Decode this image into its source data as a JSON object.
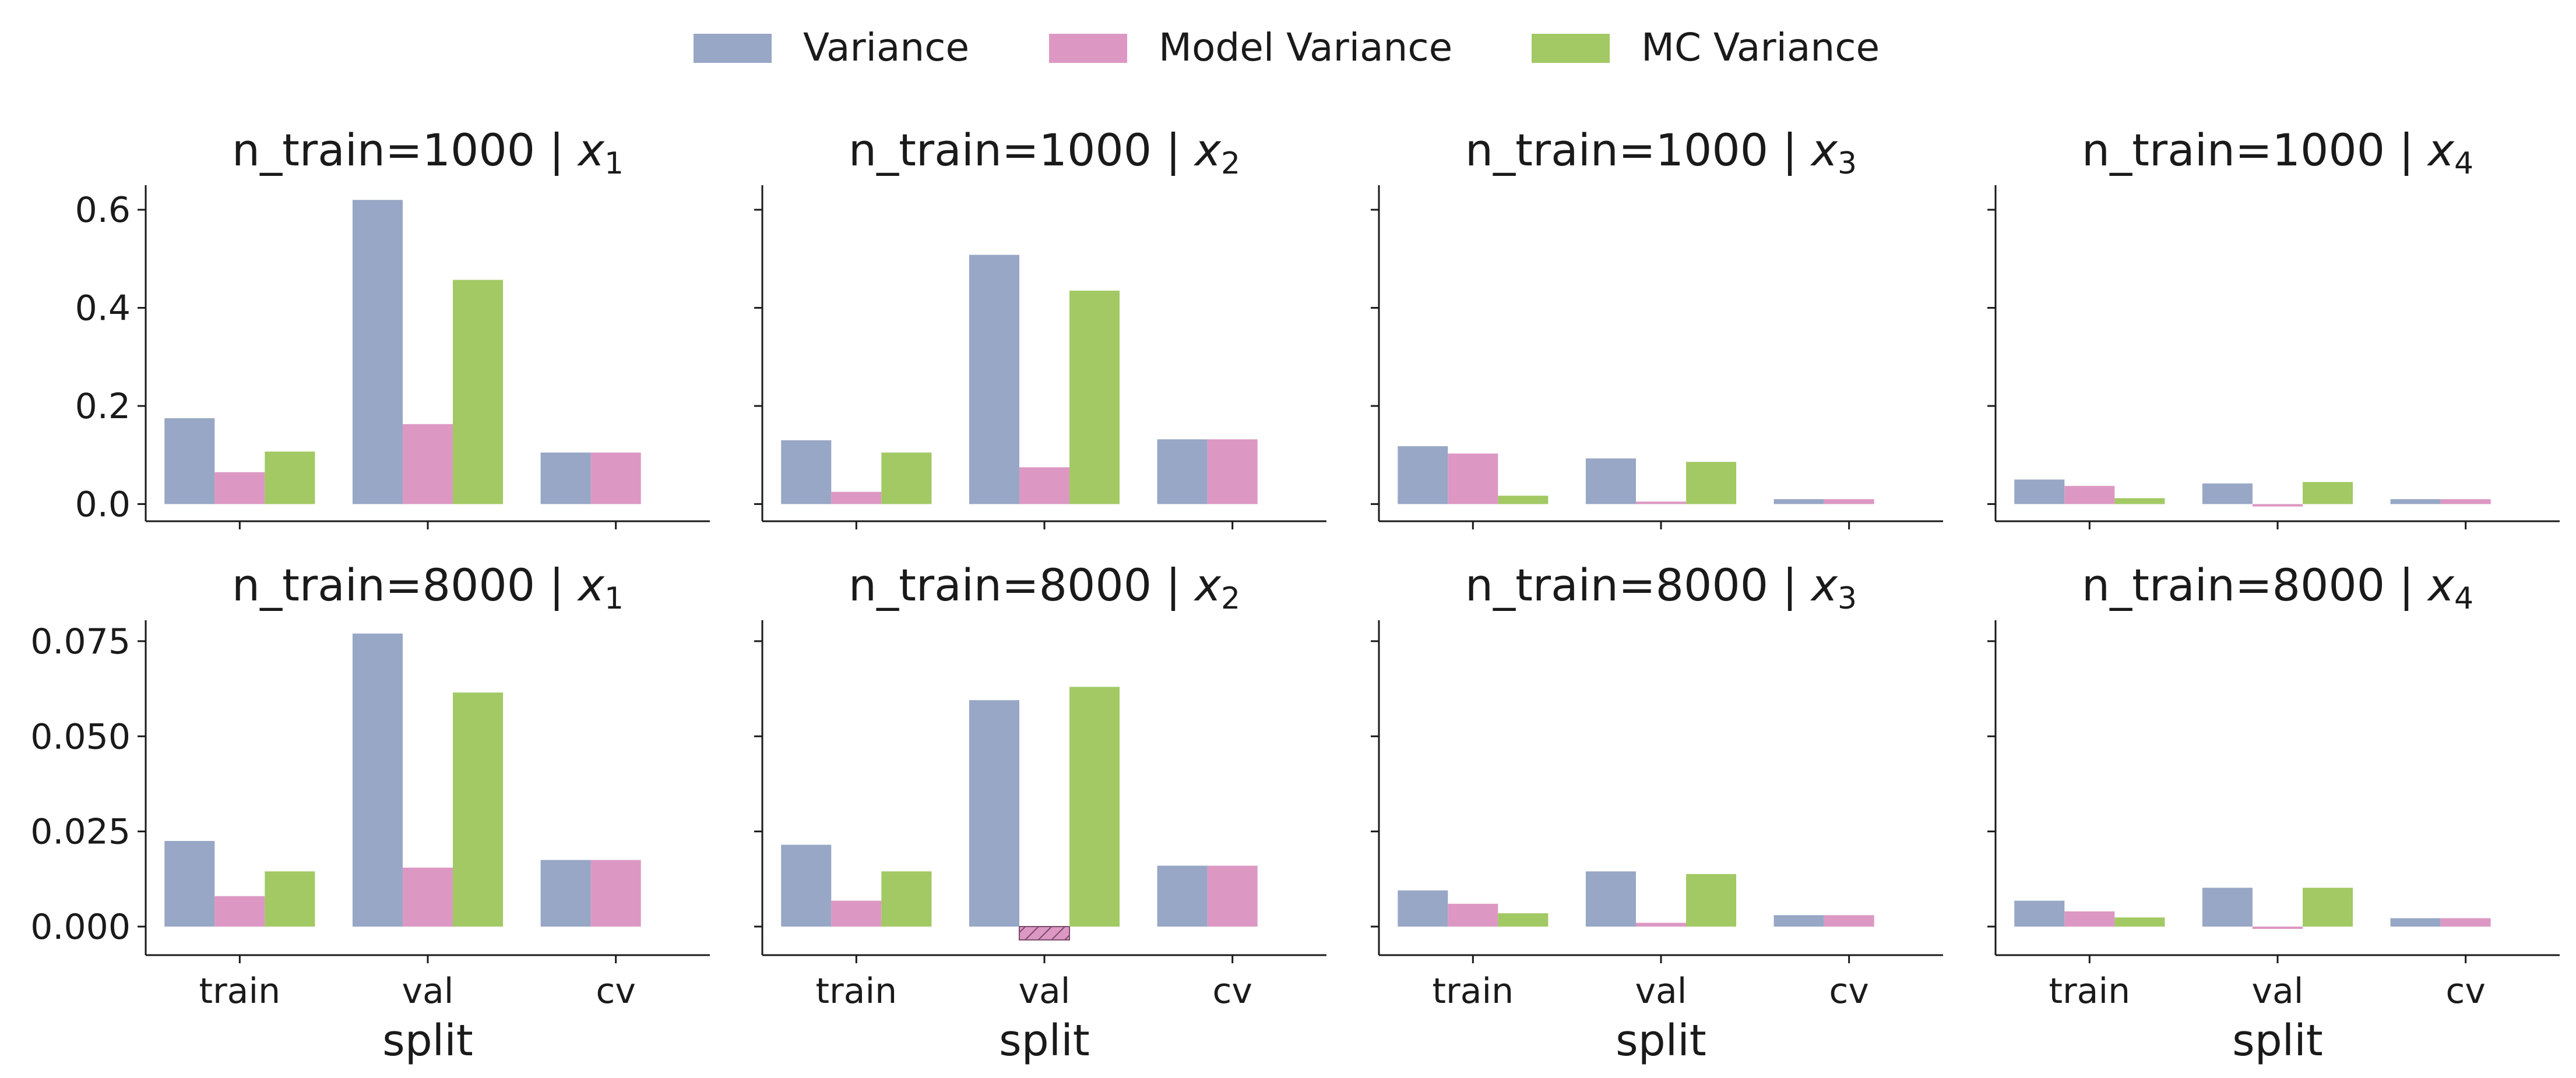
{
  "legend": [
    {
      "label": "Variance",
      "color": "#97a7c5"
    },
    {
      "label": "Model Variance",
      "color": "#dc98c3"
    },
    {
      "label": "MC Variance",
      "color": "#a2c964"
    }
  ],
  "hatch_color": "#7a4a6a",
  "chart_data": [
    {
      "type": "bar",
      "title_prefix": "n_train=1000 | ",
      "title_var": "x",
      "title_sub": "1",
      "categories": [
        "train",
        "val",
        "cv"
      ],
      "series": [
        {
          "name": "Variance",
          "values": [
            0.175,
            0.62,
            0.105
          ]
        },
        {
          "name": "Model Variance",
          "values": [
            0.065,
            0.163,
            0.105
          ]
        },
        {
          "name": "MC Variance",
          "values": [
            0.107,
            0.457,
            null
          ]
        }
      ],
      "ylim": [
        -0.035,
        0.65
      ],
      "yticks": [
        "0.0",
        "0.2",
        "0.4",
        "0.6"
      ],
      "ytick_values": [
        0,
        0.2,
        0.4,
        0.6
      ],
      "xlabel": ""
    },
    {
      "type": "bar",
      "title_prefix": "n_train=1000 | ",
      "title_var": "x",
      "title_sub": "2",
      "categories": [
        "train",
        "val",
        "cv"
      ],
      "series": [
        {
          "name": "Variance",
          "values": [
            0.13,
            0.508,
            0.132
          ]
        },
        {
          "name": "Model Variance",
          "values": [
            0.025,
            0.075,
            0.132
          ]
        },
        {
          "name": "MC Variance",
          "values": [
            0.105,
            0.435,
            null
          ]
        }
      ],
      "ylim": [
        -0.035,
        0.65
      ],
      "yticks": [],
      "ytick_values": [
        0,
        0.2,
        0.4,
        0.6
      ],
      "xlabel": ""
    },
    {
      "type": "bar",
      "title_prefix": "n_train=1000 | ",
      "title_var": "x",
      "title_sub": "3",
      "categories": [
        "train",
        "val",
        "cv"
      ],
      "series": [
        {
          "name": "Variance",
          "values": [
            0.118,
            0.093,
            0.01
          ]
        },
        {
          "name": "Model Variance",
          "values": [
            0.103,
            0.005,
            0.01
          ]
        },
        {
          "name": "MC Variance",
          "values": [
            0.017,
            0.086,
            null
          ]
        }
      ],
      "ylim": [
        -0.035,
        0.65
      ],
      "yticks": [],
      "ytick_values": [
        0,
        0.2,
        0.4,
        0.6
      ],
      "xlabel": ""
    },
    {
      "type": "bar",
      "title_prefix": "n_train=1000 | ",
      "title_var": "x",
      "title_sub": "4",
      "categories": [
        "train",
        "val",
        "cv"
      ],
      "series": [
        {
          "name": "Variance",
          "values": [
            0.05,
            0.042,
            0.01
          ]
        },
        {
          "name": "Model Variance",
          "values": [
            0.037,
            -0.005,
            0.01
          ]
        },
        {
          "name": "MC Variance",
          "values": [
            0.012,
            0.045,
            null
          ]
        }
      ],
      "ylim": [
        -0.035,
        0.65
      ],
      "yticks": [],
      "ytick_values": [
        0,
        0.2,
        0.4,
        0.6
      ],
      "xlabel": ""
    },
    {
      "type": "bar",
      "title_prefix": "n_train=8000 | ",
      "title_var": "x",
      "title_sub": "1",
      "categories": [
        "train",
        "val",
        "cv"
      ],
      "series": [
        {
          "name": "Variance",
          "values": [
            0.0225,
            0.077,
            0.0175
          ]
        },
        {
          "name": "Model Variance",
          "values": [
            0.008,
            0.0155,
            0.0175
          ]
        },
        {
          "name": "MC Variance",
          "values": [
            0.0145,
            0.0615,
            null
          ]
        }
      ],
      "ylim": [
        -0.0075,
        0.0805
      ],
      "yticks": [
        "0.000",
        "0.025",
        "0.050",
        "0.075"
      ],
      "ytick_values": [
        0,
        0.025,
        0.05,
        0.075
      ],
      "xlabel": "split"
    },
    {
      "type": "bar",
      "title_prefix": "n_train=8000 | ",
      "title_var": "x",
      "title_sub": "2",
      "categories": [
        "train",
        "val",
        "cv"
      ],
      "series": [
        {
          "name": "Variance",
          "values": [
            0.0215,
            0.0595,
            0.016
          ]
        },
        {
          "name": "Model Variance",
          "values": [
            0.0068,
            -0.0035,
            0.016
          ],
          "hatched_negative": true
        },
        {
          "name": "MC Variance",
          "values": [
            0.0145,
            0.063,
            null
          ]
        }
      ],
      "ylim": [
        -0.0075,
        0.0805
      ],
      "yticks": [],
      "ytick_values": [
        0,
        0.025,
        0.05,
        0.075
      ],
      "xlabel": "split"
    },
    {
      "type": "bar",
      "title_prefix": "n_train=8000 | ",
      "title_var": "x",
      "title_sub": "3",
      "categories": [
        "train",
        "val",
        "cv"
      ],
      "series": [
        {
          "name": "Variance",
          "values": [
            0.0095,
            0.0145,
            0.003
          ]
        },
        {
          "name": "Model Variance",
          "values": [
            0.006,
            0.001,
            0.003
          ]
        },
        {
          "name": "MC Variance",
          "values": [
            0.0035,
            0.0138,
            null
          ]
        }
      ],
      "ylim": [
        -0.0075,
        0.0805
      ],
      "yticks": [],
      "ytick_values": [
        0,
        0.025,
        0.05,
        0.075
      ],
      "xlabel": "split"
    },
    {
      "type": "bar",
      "title_prefix": "n_train=8000 | ",
      "title_var": "x",
      "title_sub": "4",
      "categories": [
        "train",
        "val",
        "cv"
      ],
      "series": [
        {
          "name": "Variance",
          "values": [
            0.0068,
            0.0102,
            0.0022
          ]
        },
        {
          "name": "Model Variance",
          "values": [
            0.004,
            0.0,
            0.0022
          ]
        },
        {
          "name": "MC Variance",
          "values": [
            0.0024,
            0.0102,
            null
          ]
        }
      ],
      "ylim": [
        -0.0075,
        0.0805
      ],
      "yticks": [],
      "ytick_values": [
        0,
        0.025,
        0.05,
        0.075
      ],
      "xlabel": "split"
    }
  ]
}
